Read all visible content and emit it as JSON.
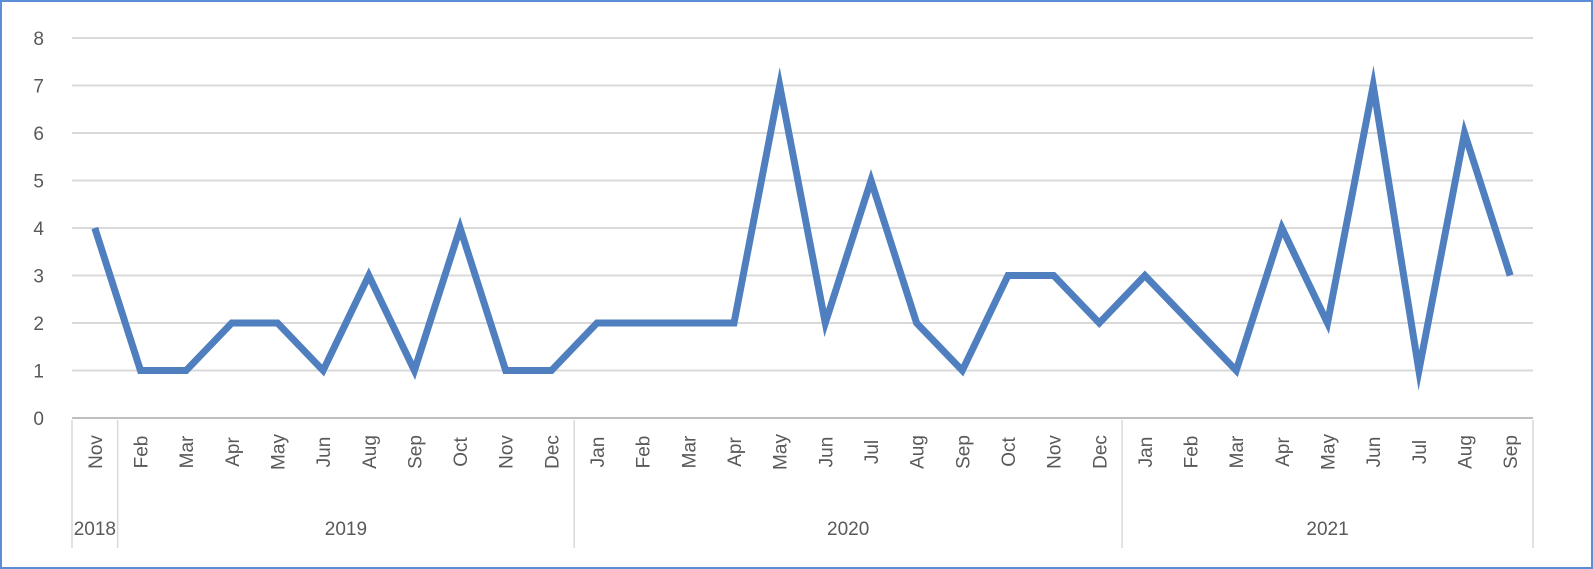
{
  "chart_data": {
    "type": "line",
    "title": "",
    "xlabel": "",
    "ylabel": "",
    "ylim": [
      0,
      8
    ],
    "yticks": [
      "0",
      "1",
      "2",
      "3",
      "4",
      "5",
      "6",
      "7",
      "8"
    ],
    "grid": true,
    "legend": "none",
    "line_color": "#4f7fbf",
    "categories": [
      "Nov",
      "Feb",
      "Mar",
      "Apr",
      "May",
      "Jun",
      "Aug",
      "Sep",
      "Oct",
      "Nov",
      "Dec",
      "Jan",
      "Feb",
      "Mar",
      "Apr",
      "May",
      "Jun",
      "Jul",
      "Aug",
      "Sep",
      "Oct",
      "Nov",
      "Dec",
      "Jan",
      "Feb",
      "Mar",
      "Apr",
      "May",
      "Jun",
      "Jul",
      "Aug",
      "Sep"
    ],
    "year_groups": [
      {
        "label": "2018",
        "count": 1
      },
      {
        "label": "2019",
        "count": 10
      },
      {
        "label": "2020",
        "count": 12
      },
      {
        "label": "2021",
        "count": 9
      }
    ],
    "series": [
      {
        "values": [
          4,
          1,
          1,
          2,
          2,
          1,
          3,
          1,
          4,
          1,
          1,
          2,
          2,
          2,
          2,
          7,
          2,
          5,
          2,
          1,
          3,
          3,
          2,
          3,
          2,
          1,
          4,
          2,
          7,
          1,
          6,
          3
        ]
      }
    ]
  }
}
